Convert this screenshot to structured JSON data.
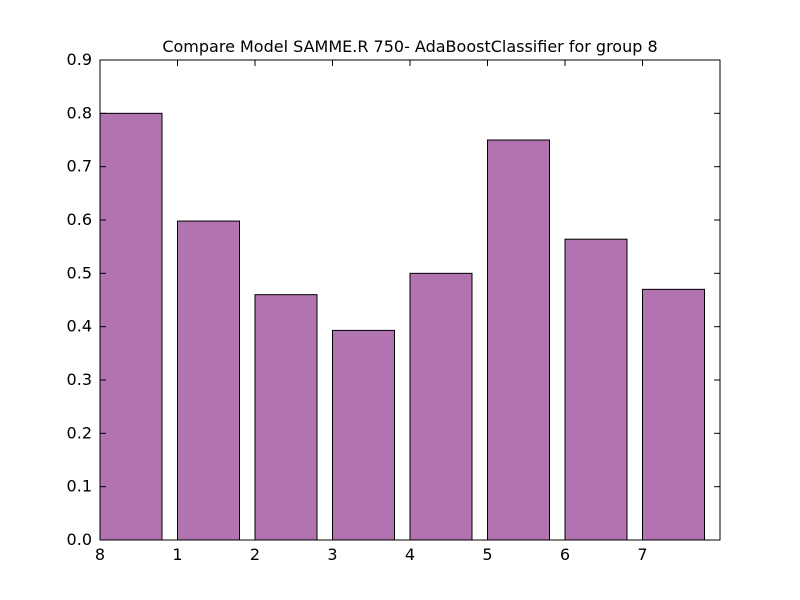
{
  "chart_data": {
    "type": "bar",
    "title": "Compare Model SAMME.R 750- AdaBoostClassifier for group 8",
    "xlabel": "",
    "ylabel": "",
    "categories": [
      "8",
      "1",
      "2",
      "3",
      "4",
      "5",
      "6",
      "7"
    ],
    "values": [
      0.8,
      0.598,
      0.46,
      0.393,
      0.5,
      0.75,
      0.564,
      0.47
    ],
    "ylim": [
      0,
      0.9
    ],
    "yticks": [
      "0.0",
      "0.1",
      "0.2",
      "0.3",
      "0.4",
      "0.5",
      "0.6",
      "0.7",
      "0.8",
      "0.9"
    ],
    "bar_color": "#b174b0",
    "edge_color": "#000000",
    "grid": false,
    "legend": "none"
  }
}
